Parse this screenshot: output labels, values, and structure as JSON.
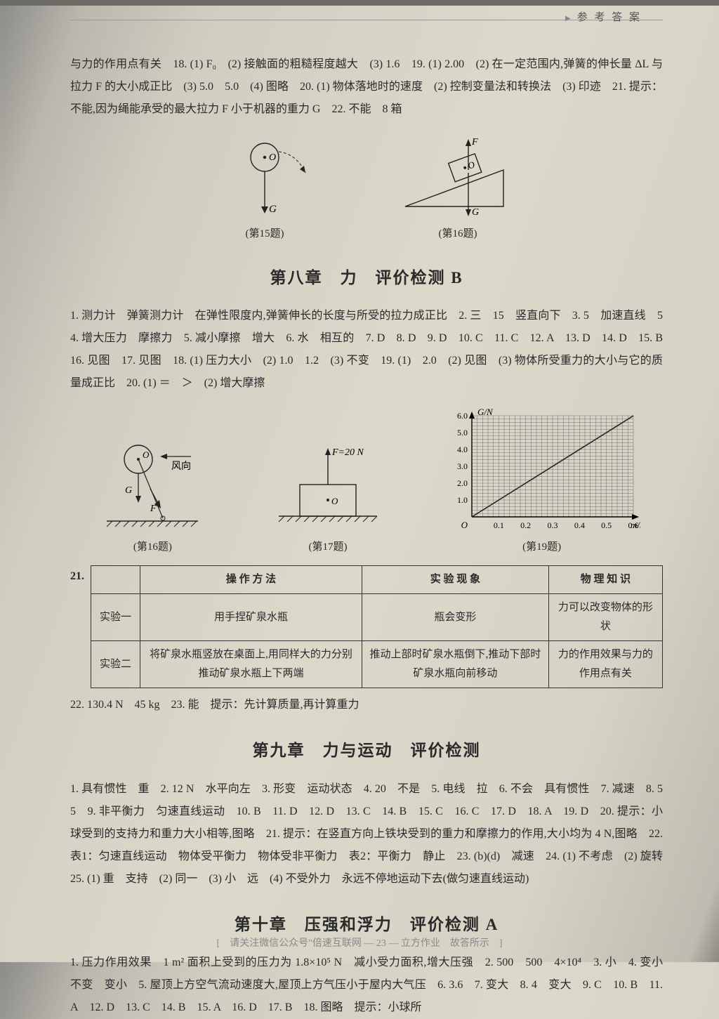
{
  "header": {
    "right": "参 考 答 案"
  },
  "topPara": "与力的作用点有关　18. (1) F₀　(2) 接触面的粗糙程度越大　(3) 1.6　19. (1) 2.00　(2) 在一定范围内,弹簧的伸长量 ΔL 与拉力 F 的大小成正比　(3) 5.0　5.0　(4) 图略　20. (1) 物体落地时的速度　(2) 控制变量法和转换法　(3) 印迹　21. 提示：不能,因为绳能承受的最大拉力 F 小于机器的重力 G　22. 不能　8 箱",
  "fig15": {
    "cap": "(第15题)"
  },
  "fig16": {
    "cap": "(第16题)"
  },
  "ch8": {
    "title": "第八章　力　评价检测 B",
    "body": "1. 测力计　弹簧测力计　在弹性限度内,弹簧伸长的长度与所受的拉力成正比　2. 三　15　竖直向下　3. 5　加速直线　5　4. 增大压力　摩擦力　5. 减小摩擦　增大　6. 水　相互的　7. D　8. D　9. D　10. C　11. C　12. A　13. D　14. D　15. B　16. 见图　17. 见图　18. (1) 压力大小　(2) 1.0　1.2　(3) 不变　19. (1)　2.0　(2) 见图　(3) 物体所受重力的大小与它的质量成正比　20. (1) ＝　＞　(2) 增大摩擦"
  },
  "fig16b": {
    "cap": "(第16题)",
    "wind": "风向"
  },
  "fig17": {
    "cap": "(第17题)",
    "flabel": "F=20 N"
  },
  "fig19": {
    "cap": "(第19题)",
    "ylabel": "G/N",
    "xlabel": "m/kg",
    "ylim": [
      0,
      6
    ],
    "ytick": [
      1.0,
      2.0,
      3.0,
      4.0,
      5.0,
      6.0
    ],
    "xlim": [
      0,
      0.6
    ],
    "xtick": [
      0.1,
      0.2,
      0.3,
      0.4,
      0.5,
      0.6
    ],
    "line_color": "#222",
    "grid_color": "#555",
    "points": [
      [
        0,
        0
      ],
      [
        0.6,
        6.0
      ]
    ]
  },
  "q21": {
    "num": "21.",
    "headers": [
      "",
      "操 作 方 法",
      "实 验 现 象",
      "物 理 知 识"
    ],
    "rows": [
      [
        "实验一",
        "用手捏矿泉水瓶",
        "瓶会变形",
        "力可以改变物体的形状"
      ],
      [
        "实验二",
        "将矿泉水瓶竖放在桌面上,用同样大的力分别推动矿泉水瓶上下两端",
        "推动上部时矿泉水瓶倒下,推动下部时矿泉水瓶向前移动",
        "力的作用效果与力的作用点有关"
      ]
    ]
  },
  "q22_23": "22. 130.4 N　45 kg　23. 能　提示：先计算质量,再计算重力",
  "ch9": {
    "title": "第九章　力与运动　评价检测",
    "body": "1. 具有惯性　重　2. 12 N　水平向左　3. 形变　运动状态　4. 20　不是　5. 电线　拉　6. 不会　具有惯性　7. 减速　8. 5　5　9. 非平衡力　匀速直线运动　10. B　11. D　12. D　13. C　14. B　15. C　16. C　17. D　18. A　19. D　20. 提示：小球受到的支持力和重力大小相等,图略　21. 提示：在竖直方向上铁块受到的重力和摩擦力的作用,大小均为 4 N,图略　22. 表1：匀速直线运动　物体受平衡力　物体受非平衡力　表2：平衡力　静止　23. (b)(d)　减速　24. (1) 不考虑　(2) 旋转　25. (1) 重　支持　(2) 同一　(3) 小　远　(4) 不受外力　永远不停地运动下去(做匀速直线运动)"
  },
  "ch10": {
    "title": "第十章　压强和浮力　评价检测 A",
    "body": "1. 压力作用效果　1 m² 面积上受到的压力为 1.8×10⁵ N　减小受力面积,增大压强　2. 500　500　4×10⁴　3. 小　4. 变小　不变　变小　5. 屋顶上方空气流动速度大,屋顶上方气压小于屋内大气压　6. 3.6　7. 变大　8. 4　变大　9. C　10. B　11. A　12. D　13. C　14. B　15. A　16. D　17. B　18. 图略　提示：小球所"
  },
  "footer": "[　请关注微信公众号\"倍速互联网 — 23 — 立方作业　故答所示　]"
}
